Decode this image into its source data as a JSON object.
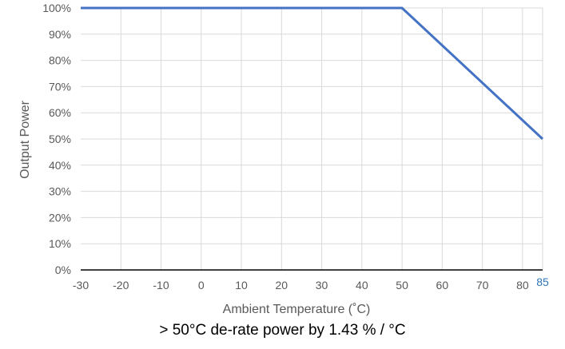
{
  "chart_data": {
    "type": "line",
    "xlabel": "Ambient Temperature (˚C)",
    "ylabel": "Output Power",
    "xlim": [
      -30,
      85
    ],
    "ylim": [
      0,
      100
    ],
    "x_ticks": [
      "-30",
      "-20",
      "-10",
      "0",
      "10",
      "20",
      "30",
      "40",
      "50",
      "60",
      "70",
      "80"
    ],
    "x_extra_tick": "85",
    "y_ticks": [
      "0%",
      "10%",
      "20%",
      "30%",
      "40%",
      "50%",
      "60%",
      "70%",
      "80%",
      "90%",
      "100%"
    ],
    "grid": true,
    "series": [
      {
        "x": [
          -30,
          50,
          85
        ],
        "y": [
          100,
          100,
          50
        ]
      }
    ],
    "colors": {
      "line": "#4472c4",
      "grid": "#d9d9d9",
      "axis": "#000000",
      "text": "#595959",
      "extra_tick": "#2e75b6"
    }
  },
  "footnote": "> 50°C de-rate power by 1.43 % / °C"
}
